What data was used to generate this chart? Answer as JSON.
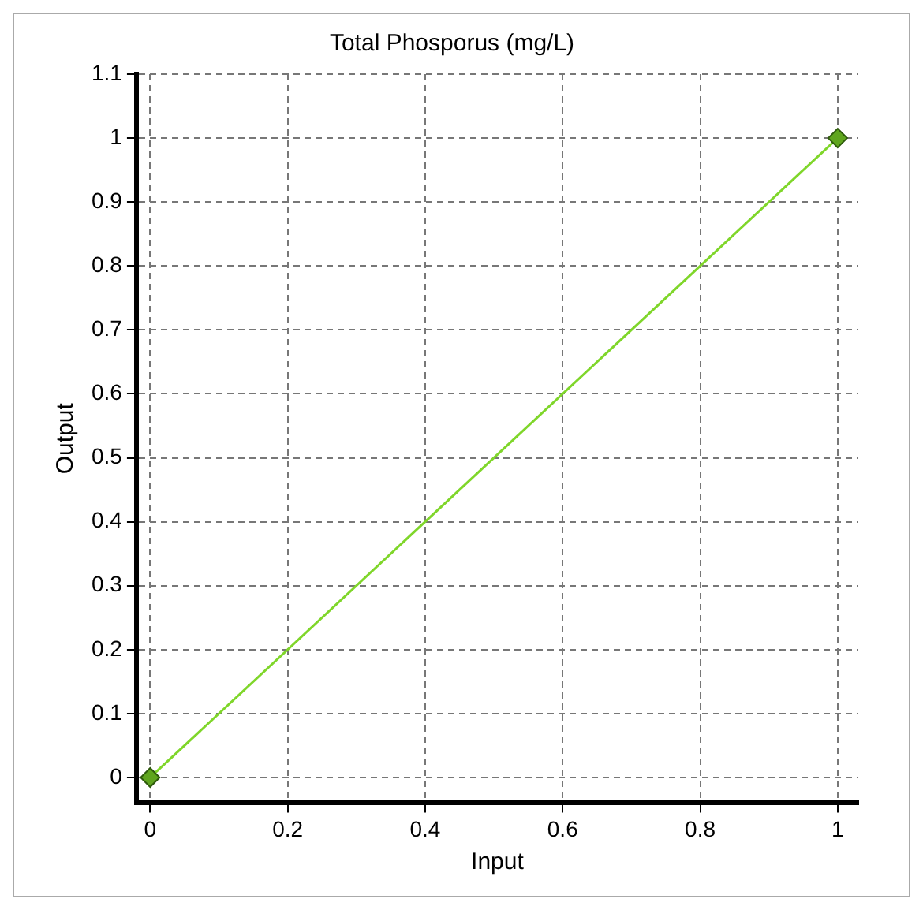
{
  "chart_data": {
    "type": "line",
    "title": "Total Phosporus (mg/L)",
    "xlabel": "Input",
    "ylabel": "Output",
    "x": [
      0,
      1
    ],
    "series": [
      {
        "color": "#7fd62a",
        "values": [
          0,
          1
        ]
      }
    ],
    "xlim": [
      -0.02,
      1.03
    ],
    "ylim": [
      -0.04,
      1.1
    ],
    "xticks": [
      0,
      0.2,
      0.4,
      0.6,
      0.8,
      1
    ],
    "yticks": [
      0,
      0.1,
      0.2,
      0.3,
      0.4,
      0.5,
      0.6,
      0.7,
      0.8,
      0.9,
      1,
      1.1
    ],
    "grid": true,
    "legend": false,
    "marker": "diamond",
    "line_style": "solid"
  }
}
